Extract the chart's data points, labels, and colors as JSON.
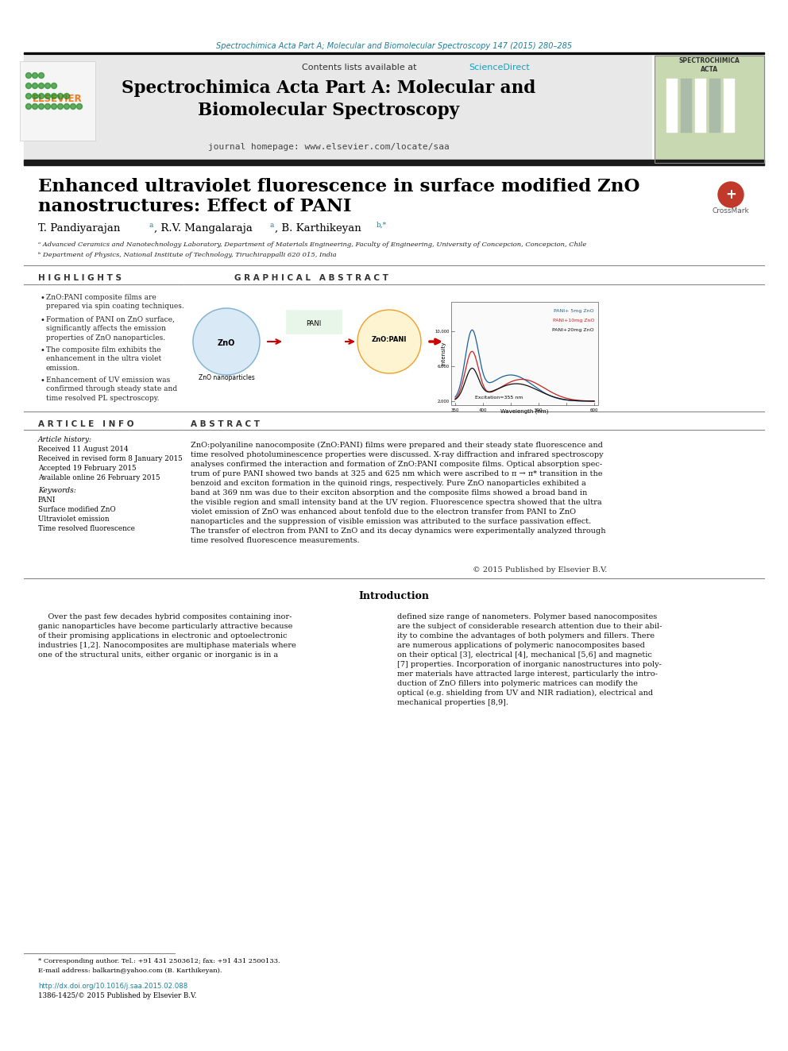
{
  "page_bg": "#ffffff",
  "top_journal_line": "Spectrochimica Acta Part A; Molecular and Biomolecular Spectroscopy 147 (2015) 280–285",
  "top_journal_color": "#1a7fa0",
  "header_bg": "#e8e8e8",
  "header_contents": "Contents lists available at",
  "header_sciencedirect": "ScienceDirect",
  "header_sciencedirect_color": "#1a9fc0",
  "journal_title": "Spectrochimica Acta Part A: Molecular and\nBiomolecular Spectroscopy",
  "journal_homepage": "journal homepage: www.elsevier.com/locate/saa",
  "article_title_line1": "Enhanced ultraviolet fluorescence in surface modified ZnO",
  "article_title_line2": "nanostructures: Effect of PANI",
  "affil_a": "ᵃ Advanced Ceramics and Nanotechnology Laboratory, Department of Materials Engineering, Faculty of Engineering, University of Concepcion, Concepcion, Chile",
  "affil_b": "ᵇ Department of Physics, National Institute of Technology, Tiruchirappalli 620 015, India",
  "highlights_title": "H I G H L I G H T S",
  "highlights": [
    "ZnO:PANI composite films are\nprepared via spin coating techniques.",
    "Formation of PANI on ZnO surface,\nsignificantly affects the emission\nproperties of ZnO nanoparticles.",
    "The composite film exhibits the\nenhancement in the ultra violet\nemission.",
    "Enhancement of UV emission was\nconfirmed through steady state and\ntime resolved PL spectroscopy."
  ],
  "graphical_abstract_title": "G R A P H I C A L   A B S T R A C T",
  "article_info_title": "A R T I C L E   I N F O",
  "article_history_label": "Article history:",
  "received": "Received 11 August 2014",
  "revised": "Received in revised form 8 January 2015",
  "accepted": "Accepted 19 February 2015",
  "available": "Available online 26 February 2015",
  "keywords_label": "Keywords:",
  "keywords": [
    "PANI",
    "Surface modified ZnO",
    "Ultraviolet emission",
    "Time resolved fluorescence"
  ],
  "abstract_title": "A B S T R A C T",
  "abstract_text": "ZnO:polyaniline nanocomposite (ZnO:PANI) films were prepared and their steady state fluorescence and\ntime resolved photoluminescence properties were discussed. X-ray diffraction and infrared spectroscopy\nanalyses confirmed the interaction and formation of ZnO:PANI composite films. Optical absorption spec-\ntrum of pure PANI showed two bands at 325 and 625 nm which were ascribed to π → π* transition in the\nbenzoid and exciton formation in the quinoid rings, respectively. Pure ZnO nanoparticles exhibited a\nband at 369 nm was due to their exciton absorption and the composite films showed a broad band in\nthe visible region and small intensity band at the UV region. Fluorescence spectra showed that the ultra\nviolet emission of ZnO was enhanced about tenfold due to the electron transfer from PANI to ZnO\nnanoparticles and the suppression of visible emission was attributed to the surface passivation effect.\nThe transfer of electron from PANI to ZnO and its decay dynamics were experimentally analyzed through\ntime resolved fluorescence measurements.",
  "copyright": "© 2015 Published by Elsevier B.V.",
  "intro_title": "Introduction",
  "intro_col1": "    Over the past few decades hybrid composites containing inor-\nganic nanoparticles have become particularly attractive because\nof their promising applications in electronic and optoelectronic\nindustries [1,2]. Nanocomposites are multiphase materials where\none of the structural units, either organic or inorganic is in a",
  "intro_col2": "defined size range of nanometers. Polymer based nanocomposites\nare the subject of considerable research attention due to their abil-\nity to combine the advantages of both polymers and fillers. There\nare numerous applications of polymeric nanocomposites based\non their optical [3], electrical [4], mechanical [5,6] and magnetic\n[7] properties. Incorporation of inorganic nanostructures into poly-\nmer materials have attracted large interest, particularly the intro-\nduction of ZnO fillers into polymeric matrices can modify the\noptical (e.g. shielding from UV and NIR radiation), electrical and\nmechanical properties [8,9].",
  "footnote_star": "* Corresponding author. Tel.: +91 431 2503612; fax: +91 431 2500133.",
  "footnote_email": "E-mail address: balkarin@yahoo.com (B. Karthikeyan).",
  "doi_line": "http://dx.doi.org/10.1016/j.saa.2015.02.088",
  "issn_line": "1386-1425/© 2015 Published by Elsevier B.V.",
  "dark_bar_color": "#1a1a1a",
  "highlight_bullet": "•"
}
